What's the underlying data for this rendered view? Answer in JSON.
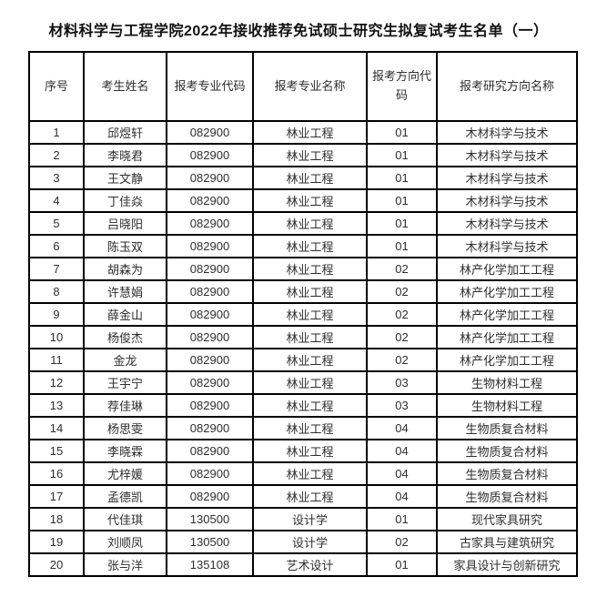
{
  "page": {
    "title": "材料科学与工程学院2022年接收推荐免试硕士研究生拟复试考生名单（一）"
  },
  "table": {
    "headers": [
      "序号",
      "考生姓名",
      "报考专业代码",
      "报考专业名称",
      "报考方向代码",
      "报考研究方向名称"
    ],
    "rows": [
      [
        "1",
        "邱煜轩",
        "082900",
        "林业工程",
        "01",
        "木材科学与技术"
      ],
      [
        "2",
        "李晓君",
        "082900",
        "林业工程",
        "01",
        "木材科学与技术"
      ],
      [
        "3",
        "王文静",
        "082900",
        "林业工程",
        "01",
        "木材科学与技术"
      ],
      [
        "4",
        "丁佳焱",
        "082900",
        "林业工程",
        "01",
        "木材科学与技术"
      ],
      [
        "5",
        "吕晓阳",
        "082900",
        "林业工程",
        "01",
        "木材科学与技术"
      ],
      [
        "6",
        "陈玉双",
        "082900",
        "林业工程",
        "01",
        "木材科学与技术"
      ],
      [
        "7",
        "胡森为",
        "082900",
        "林业工程",
        "02",
        "林产化学加工工程"
      ],
      [
        "8",
        "许慧娟",
        "082900",
        "林业工程",
        "02",
        "林产化学加工工程"
      ],
      [
        "9",
        "薛金山",
        "082900",
        "林业工程",
        "02",
        "林产化学加工工程"
      ],
      [
        "10",
        "杨俊杰",
        "082900",
        "林业工程",
        "02",
        "林产化学加工工程"
      ],
      [
        "11",
        "金龙",
        "082900",
        "林业工程",
        "02",
        "林产化学加工工程"
      ],
      [
        "12",
        "王宇宁",
        "082900",
        "林业工程",
        "03",
        "生物材料工程"
      ],
      [
        "13",
        "荐佳琳",
        "082900",
        "林业工程",
        "03",
        "生物材料工程"
      ],
      [
        "14",
        "杨思雯",
        "082900",
        "林业工程",
        "04",
        "生物质复合材料"
      ],
      [
        "15",
        "李晓霖",
        "082900",
        "林业工程",
        "04",
        "生物质复合材料"
      ],
      [
        "16",
        "尤梓媛",
        "082900",
        "林业工程",
        "04",
        "生物质复合材料"
      ],
      [
        "17",
        "孟德凯",
        "082900",
        "林业工程",
        "04",
        "生物质复合材料"
      ],
      [
        "18",
        "代佳琪",
        "130500",
        "设计学",
        "01",
        "现代家具研究"
      ],
      [
        "19",
        "刘顺凤",
        "130500",
        "设计学",
        "02",
        "古家具与建筑研究"
      ],
      [
        "20",
        "张与洋",
        "135108",
        "艺术设计",
        "01",
        "家具设计与创新研究"
      ]
    ]
  },
  "colors": {
    "border": "#000000",
    "text": "#2e2e2e",
    "title_text": "#111111",
    "background": "#ffffff"
  }
}
